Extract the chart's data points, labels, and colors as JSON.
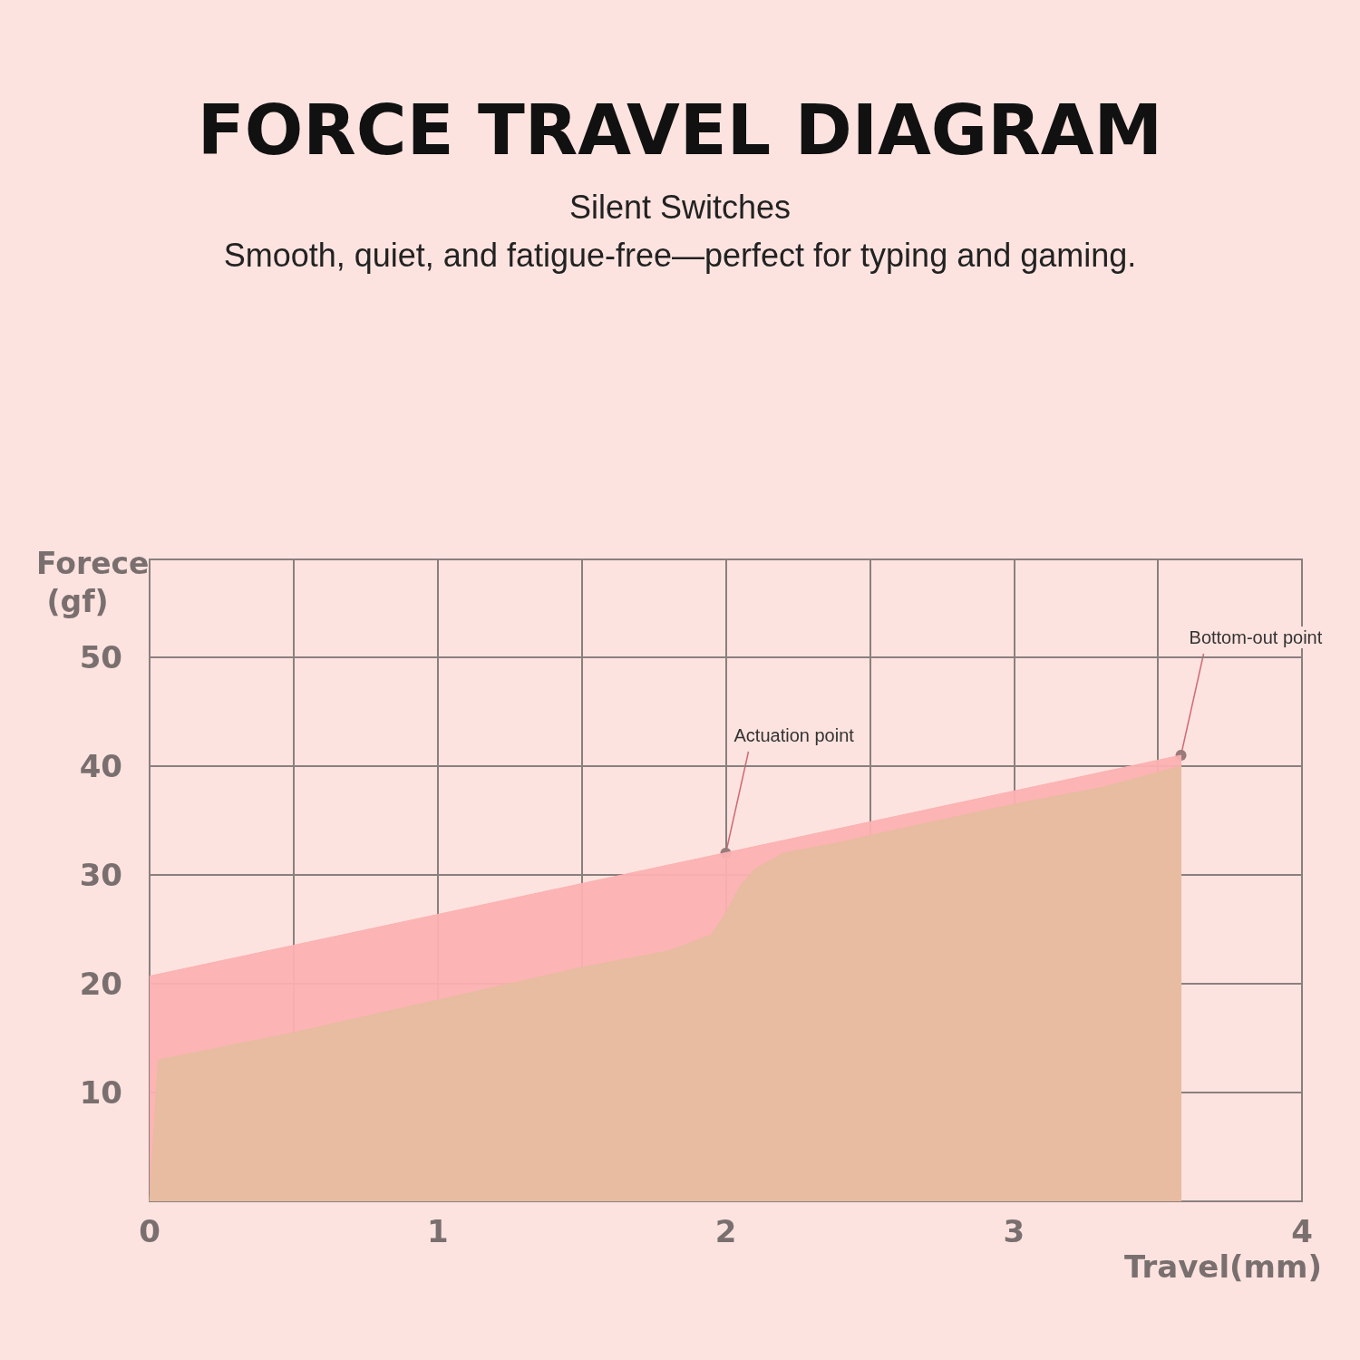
{
  "chart_data": {
    "type": "area",
    "title": "FORCE TRAVEL DIAGRAM",
    "subtitle": "Silent Switches\nSmooth, quiet, and fatigue-free—perfect for typing and gaming.",
    "xlabel": "Travel(mm)",
    "ylabel": "Forece (gf)",
    "series": [
      {
        "color": "#fcb1b1",
        "x": [
          0,
          3.58,
          3.58
        ],
        "values": [
          20.7,
          41,
          0
        ]
      },
      {
        "color": "#e6bda0",
        "x": [
          0,
          0.03,
          0.5,
          1,
          1.5,
          1.8,
          1.95,
          2.0,
          2.05,
          2.1,
          2.2,
          2.4,
          2.6,
          3,
          3.3,
          3.58,
          3.58
        ],
        "values": [
          0,
          13,
          15.5,
          18.5,
          21.5,
          23,
          24.5,
          26.5,
          29,
          30.5,
          32,
          33,
          34.2,
          36.5,
          38,
          40,
          0
        ]
      }
    ],
    "xlim": [
      0,
      4
    ],
    "xticks": [
      0,
      {
        "value": 0.5,
        "label": null
      },
      1,
      {
        "value": 1.5,
        "label": null
      },
      2,
      {
        "value": 2.5,
        "label": null
      },
      3,
      {
        "value": 3.5,
        "label": null
      },
      4
    ],
    "ylim": [
      0,
      59
    ],
    "yticks": [
      {
        "value": 0,
        "label": null
      },
      10,
      20,
      30,
      40,
      50
    ],
    "grid": true,
    "annotations": [
      {
        "text": "Actuation point",
        "x": 2,
        "y": 32
      },
      {
        "text": "Bottom-out point",
        "x": 3.58,
        "y": 41
      }
    ]
  }
}
